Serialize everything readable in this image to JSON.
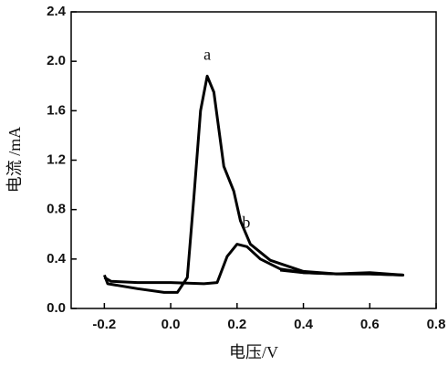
{
  "chart_data": {
    "type": "line",
    "x_label": "电压/V",
    "y_label": "电流 /mA",
    "xlim": [
      -0.3,
      0.8
    ],
    "ylim": [
      0,
      2.4
    ],
    "xticks": [
      -0.2,
      {
        "value": 0,
        "label": "0.0"
      },
      0.2,
      0.4,
      0.6,
      0.8
    ],
    "yticks": [
      {
        "value": 0,
        "label": "0.0"
      },
      0.4,
      0.8,
      1.2,
      1.6,
      {
        "value": 2,
        "label": "2.0"
      },
      2.4
    ],
    "series": [
      {
        "name": "a",
        "color": "#000000",
        "x": [
          -0.2,
          -0.19,
          -0.1,
          -0.02,
          0.02,
          0.05,
          0.07,
          0.09,
          0.11,
          0.13,
          0.16,
          0.19,
          0.21,
          0.24,
          0.3,
          0.4,
          0.5,
          0.6,
          0.7,
          0.6,
          0.5,
          0.4,
          0.33
        ],
        "values": [
          0.27,
          0.2,
          0.16,
          0.13,
          0.13,
          0.25,
          0.9,
          1.6,
          1.88,
          1.75,
          1.15,
          0.95,
          0.71,
          0.52,
          0.39,
          0.3,
          0.28,
          0.28,
          0.27,
          0.29,
          0.28,
          0.29,
          0.31
        ]
      },
      {
        "name": "b",
        "color": "#000000",
        "x": [
          -0.2,
          -0.18,
          -0.1,
          0.0,
          0.1,
          0.14,
          0.17,
          0.2,
          0.23,
          0.27,
          0.33,
          0.4,
          0.5,
          0.6,
          0.7
        ],
        "values": [
          0.25,
          0.22,
          0.21,
          0.21,
          0.2,
          0.21,
          0.42,
          0.52,
          0.5,
          0.4,
          0.32,
          0.29,
          0.28,
          0.28,
          0.27
        ]
      }
    ]
  }
}
